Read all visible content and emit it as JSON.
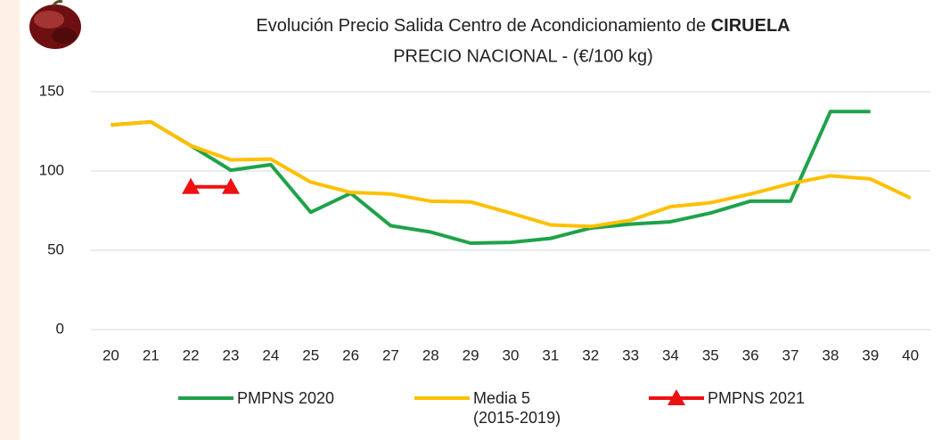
{
  "chart_data": {
    "type": "line",
    "title_parts": [
      "Evolución Precio Salida Centro de Acondicionamiento de",
      "CIRUELA"
    ],
    "subtitle": "PRECIO NACIONAL - (€/100 kg)",
    "categories": [
      "20",
      "21",
      "22",
      "23",
      "24",
      "25",
      "26",
      "27",
      "28",
      "29",
      "30",
      "31",
      "32",
      "33",
      "34",
      "35",
      "36",
      "37",
      "38",
      "39",
      "40"
    ],
    "series": [
      {
        "name": "PMPNS 2020",
        "color": "#1fa24a",
        "marker": "none",
        "values": [
          129,
          131,
          116,
          100.5,
          104,
          74,
          86,
          65.5,
          61.5,
          54.5,
          55,
          57.5,
          64,
          66.5,
          68,
          73.5,
          81,
          81,
          137.5,
          137.5,
          null
        ]
      },
      {
        "name": "Media 5 (2015-2019)",
        "color": "#ffc000",
        "marker": "none",
        "values": [
          129,
          131,
          116,
          107,
          107.5,
          93,
          86.5,
          85.5,
          81,
          80.5,
          73.5,
          66,
          65,
          69,
          77.5,
          80,
          85.5,
          92,
          97,
          95,
          83
        ]
      },
      {
        "name": "PMPNS 2021",
        "color": "#ee1111",
        "marker": "triangle",
        "values": [
          null,
          null,
          90,
          90,
          null,
          null,
          null,
          null,
          null,
          null,
          null,
          null,
          null,
          null,
          null,
          null,
          null,
          null,
          null,
          null,
          null
        ]
      }
    ],
    "ylim": [
      0,
      150
    ],
    "yticks": [
      0,
      50,
      100,
      150
    ],
    "grid": true,
    "legend": "bottom"
  }
}
